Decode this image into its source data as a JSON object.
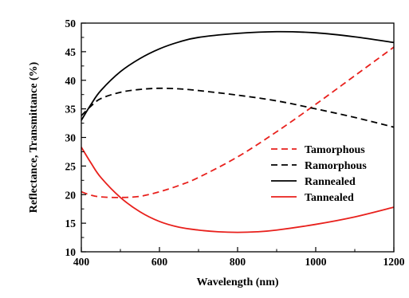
{
  "chart_data": {
    "type": "line",
    "title": "",
    "xlabel": "Wavelength (nm)",
    "ylabel": "Reflectance, Transmittance (%)",
    "xlim": [
      400,
      1200
    ],
    "ylim": [
      10,
      50
    ],
    "xticks": [
      400,
      600,
      800,
      1000,
      1200
    ],
    "yticks": [
      10,
      15,
      20,
      25,
      30,
      35,
      40,
      45,
      50
    ],
    "grid": false,
    "legend_position": "right-center",
    "series": [
      {
        "name": "Tamorphous",
        "color": "#e8201c",
        "dash": "dashed",
        "x": [
          400,
          425,
          450,
          500,
          550,
          600,
          650,
          700,
          800,
          900,
          1000,
          1100,
          1200
        ],
        "y": [
          20.5,
          19.9,
          19.6,
          19.5,
          19.7,
          20.5,
          21.6,
          23.0,
          26.6,
          31.0,
          35.8,
          40.8,
          45.8
        ]
      },
      {
        "name": "Ramorphous",
        "color": "#000000",
        "dash": "dashed",
        "x": [
          400,
          425,
          450,
          500,
          550,
          600,
          650,
          700,
          800,
          900,
          1000,
          1100,
          1200
        ],
        "y": [
          33.8,
          35.5,
          36.8,
          37.9,
          38.4,
          38.6,
          38.5,
          38.2,
          37.4,
          36.4,
          35.0,
          33.5,
          31.8
        ]
      },
      {
        "name": "Rannealed",
        "color": "#000000",
        "dash": "solid",
        "x": [
          400,
          425,
          450,
          500,
          550,
          600,
          650,
          700,
          800,
          900,
          1000,
          1100,
          1200
        ],
        "y": [
          33.0,
          35.8,
          38.2,
          41.5,
          43.8,
          45.5,
          46.7,
          47.5,
          48.2,
          48.5,
          48.3,
          47.6,
          46.6
        ]
      },
      {
        "name": "Tannealed",
        "color": "#e8201c",
        "dash": "solid",
        "x": [
          400,
          425,
          450,
          500,
          550,
          600,
          650,
          700,
          750,
          800,
          850,
          900,
          1000,
          1100,
          1200
        ],
        "y": [
          28.3,
          25.5,
          23.0,
          19.5,
          17.0,
          15.3,
          14.3,
          13.8,
          13.5,
          13.4,
          13.5,
          13.8,
          14.8,
          16.1,
          17.8
        ]
      }
    ]
  }
}
